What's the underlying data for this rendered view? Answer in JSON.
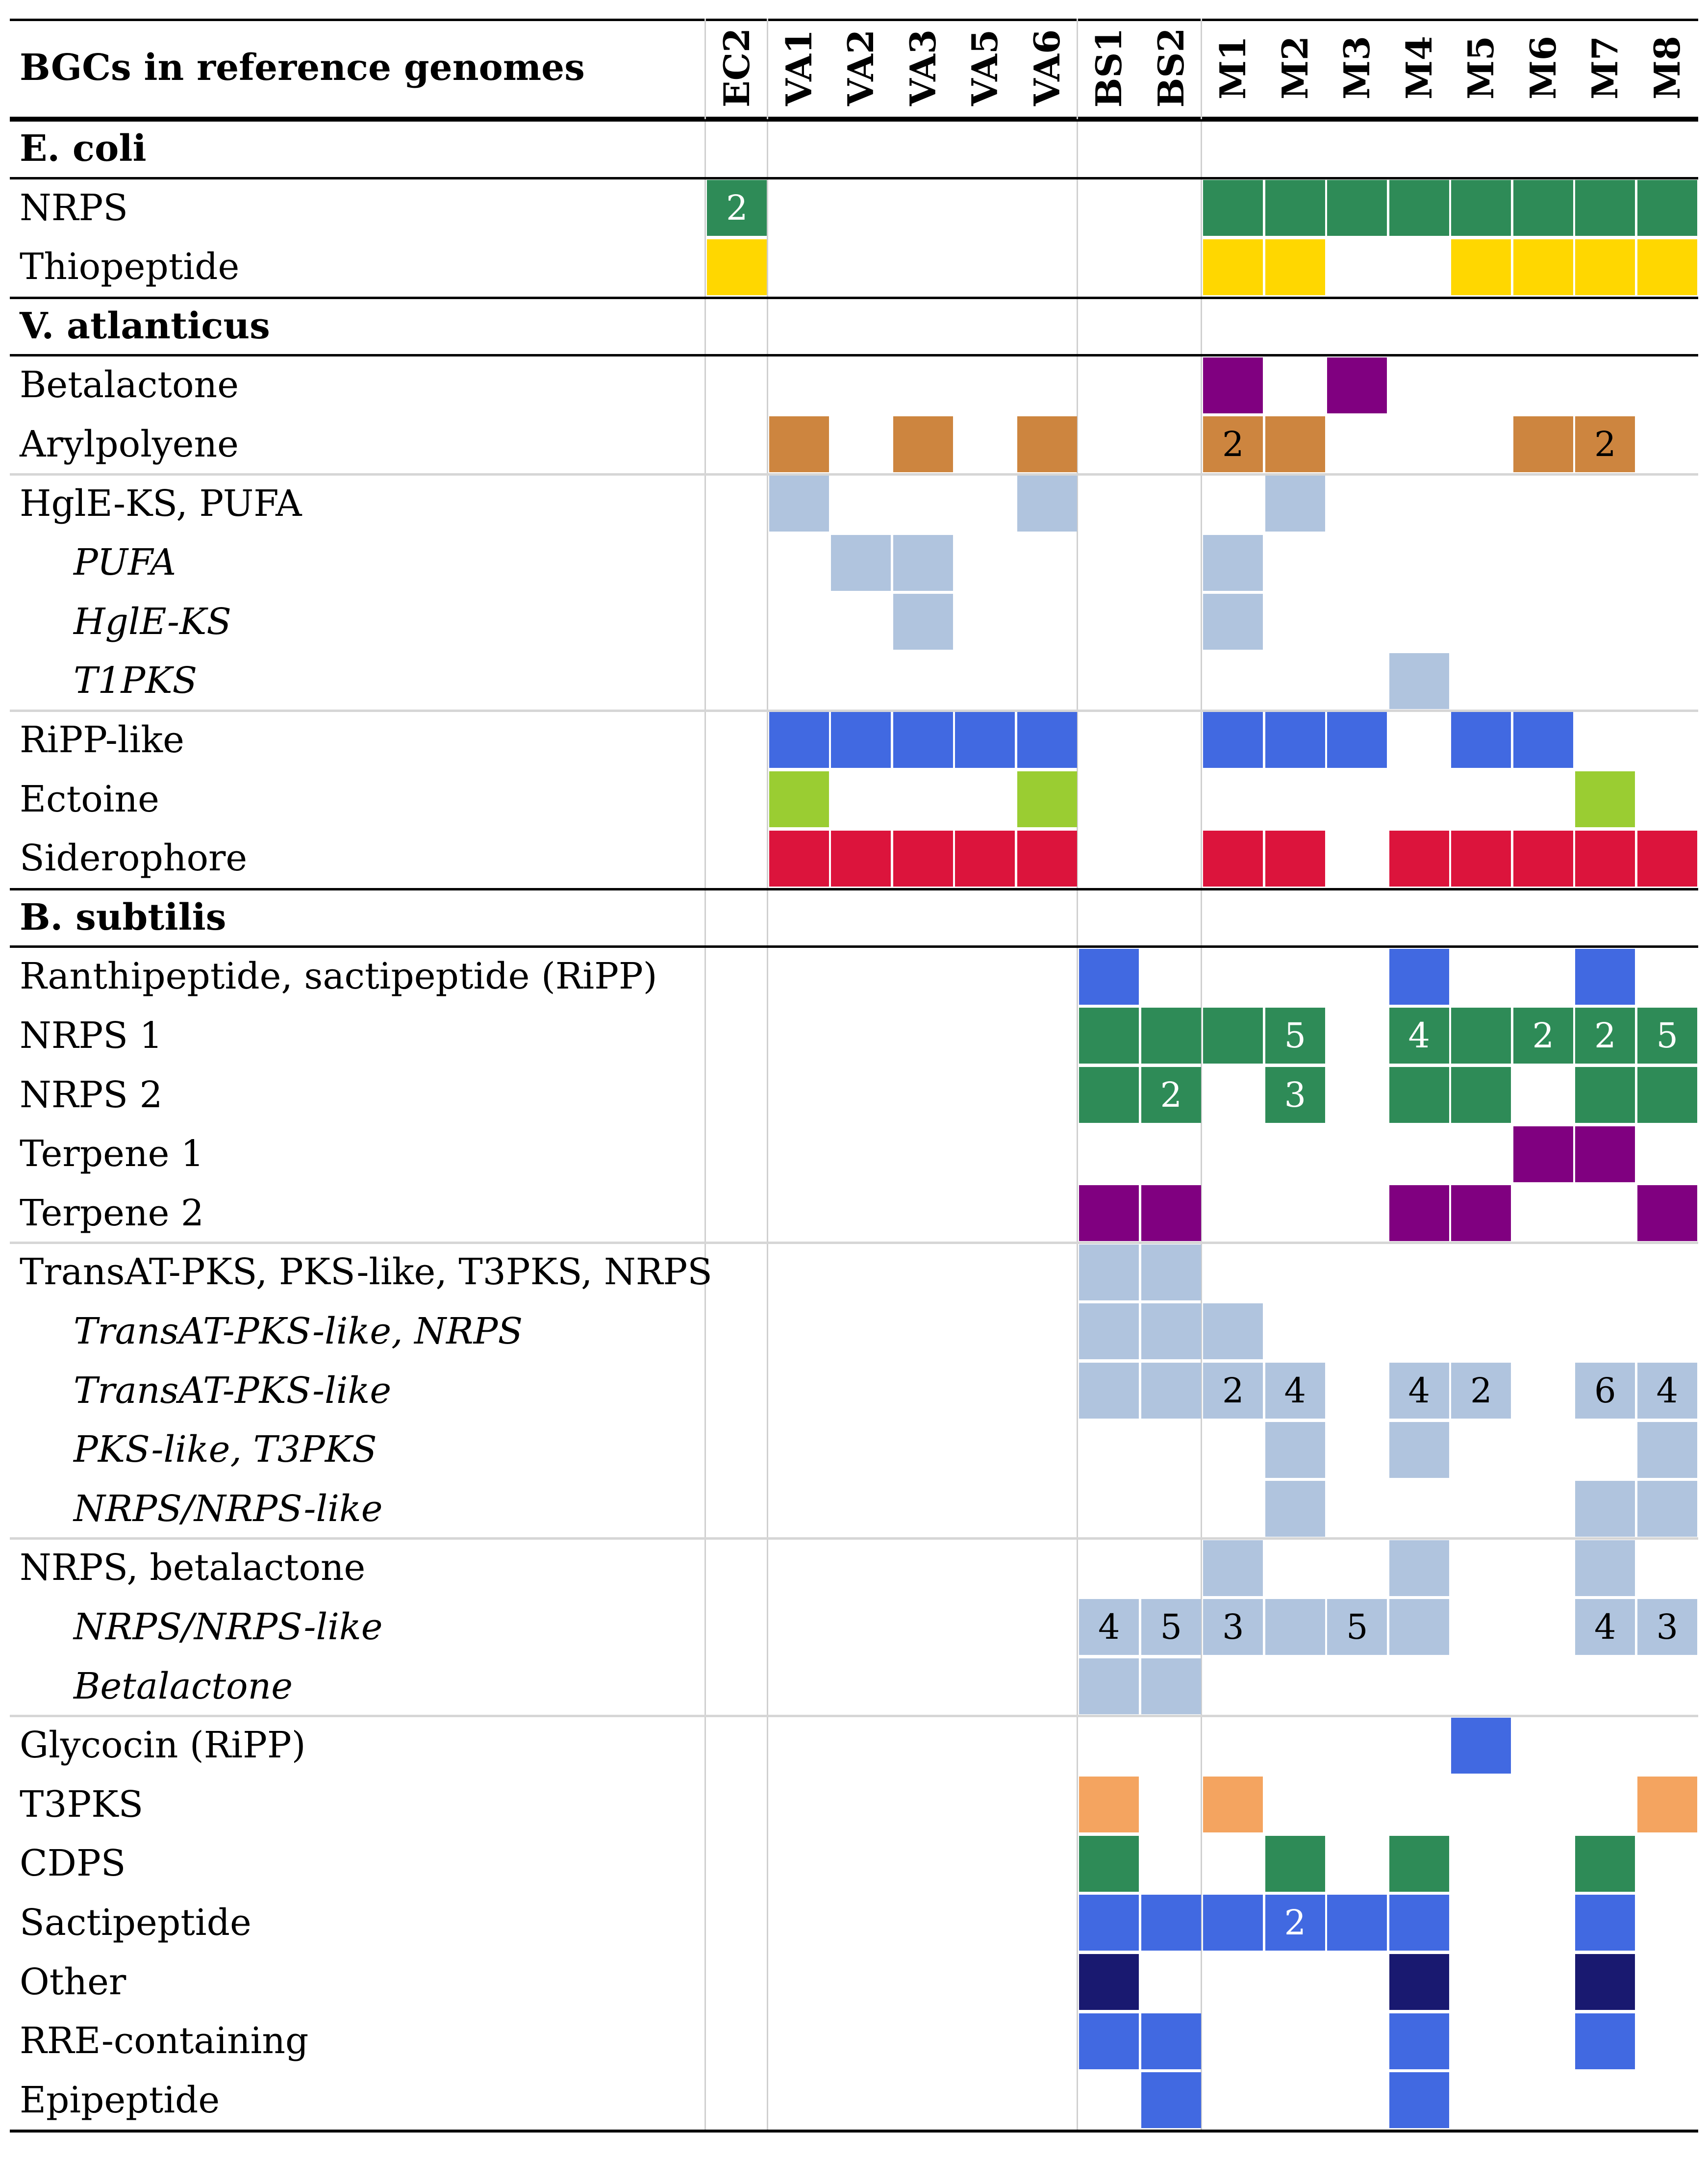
{
  "header": {
    "title": "BGCs in reference genomes"
  },
  "columns": [
    "EC2",
    "VA1",
    "VA2",
    "VA3",
    "VA5",
    "VA6",
    "BS1",
    "BS2",
    "M1",
    "M2",
    "M3",
    "M4",
    "M5",
    "M6",
    "M7",
    "M8"
  ],
  "colors": {
    "green": "#2e8b57",
    "yellow": "#ffd700",
    "purple": "#800080",
    "brown": "#cd853f",
    "lightblue": "#b0c4de",
    "blue": "#4169e1",
    "lime": "#9acd32",
    "red": "#dc143c",
    "orange": "#f4a460",
    "navy": "#191970"
  },
  "rows": [
    {
      "label": "E. coli",
      "type": "section",
      "cells": []
    },
    {
      "label": "NRPS",
      "type": "row",
      "cells": [
        {
          "col": 0,
          "color": "green",
          "text": "2"
        },
        {
          "col": 8,
          "color": "green"
        },
        {
          "col": 9,
          "color": "green"
        },
        {
          "col": 10,
          "color": "green"
        },
        {
          "col": 11,
          "color": "green"
        },
        {
          "col": 12,
          "color": "green"
        },
        {
          "col": 13,
          "color": "green"
        },
        {
          "col": 14,
          "color": "green"
        },
        {
          "col": 15,
          "color": "green"
        }
      ]
    },
    {
      "label": "Thiopeptide",
      "type": "row",
      "cells": [
        {
          "col": 0,
          "color": "yellow"
        },
        {
          "col": 8,
          "color": "yellow"
        },
        {
          "col": 9,
          "color": "yellow"
        },
        {
          "col": 12,
          "color": "yellow"
        },
        {
          "col": 13,
          "color": "yellow"
        },
        {
          "col": 14,
          "color": "yellow"
        },
        {
          "col": 15,
          "color": "yellow"
        }
      ]
    },
    {
      "label": "V. atlanticus",
      "type": "section",
      "cells": []
    },
    {
      "label": "Betalactone",
      "type": "row",
      "cells": [
        {
          "col": 8,
          "color": "purple"
        },
        {
          "col": 10,
          "color": "purple"
        }
      ]
    },
    {
      "label": "Arylpolyene",
      "type": "row",
      "cells": [
        {
          "col": 1,
          "color": "brown"
        },
        {
          "col": 3,
          "color": "brown"
        },
        {
          "col": 5,
          "color": "brown"
        },
        {
          "col": 8,
          "color": "brown",
          "text": "2"
        },
        {
          "col": 9,
          "color": "brown"
        },
        {
          "col": 13,
          "color": "brown"
        },
        {
          "col": 14,
          "color": "brown",
          "text": "2"
        }
      ]
    },
    {
      "label": "HglE-KS, PUFA",
      "type": "row",
      "groupTop": true,
      "cells": [
        {
          "col": 1,
          "color": "lightblue"
        },
        {
          "col": 5,
          "color": "lightblue"
        },
        {
          "col": 9,
          "color": "lightblue"
        }
      ]
    },
    {
      "label": "PUFA",
      "type": "sub",
      "cells": [
        {
          "col": 2,
          "color": "lightblue"
        },
        {
          "col": 3,
          "color": "lightblue"
        },
        {
          "col": 8,
          "color": "lightblue"
        }
      ]
    },
    {
      "label": "HglE-KS",
      "type": "sub",
      "cells": [
        {
          "col": 3,
          "color": "lightblue"
        },
        {
          "col": 8,
          "color": "lightblue"
        }
      ]
    },
    {
      "label": "T1PKS",
      "type": "sub",
      "cells": [
        {
          "col": 11,
          "color": "lightblue"
        }
      ]
    },
    {
      "label": "RiPP-like",
      "type": "row",
      "groupTop": true,
      "cells": [
        {
          "col": 1,
          "color": "blue"
        },
        {
          "col": 2,
          "color": "blue"
        },
        {
          "col": 3,
          "color": "blue"
        },
        {
          "col": 4,
          "color": "blue"
        },
        {
          "col": 5,
          "color": "blue"
        },
        {
          "col": 8,
          "color": "blue"
        },
        {
          "col": 9,
          "color": "blue"
        },
        {
          "col": 10,
          "color": "blue"
        },
        {
          "col": 12,
          "color": "blue"
        },
        {
          "col": 13,
          "color": "blue"
        }
      ]
    },
    {
      "label": "Ectoine",
      "type": "row",
      "cells": [
        {
          "col": 1,
          "color": "lime"
        },
        {
          "col": 5,
          "color": "lime"
        },
        {
          "col": 14,
          "color": "lime"
        }
      ]
    },
    {
      "label": "Siderophore",
      "type": "row",
      "cells": [
        {
          "col": 1,
          "color": "red"
        },
        {
          "col": 2,
          "color": "red"
        },
        {
          "col": 3,
          "color": "red"
        },
        {
          "col": 4,
          "color": "red"
        },
        {
          "col": 5,
          "color": "red"
        },
        {
          "col": 8,
          "color": "red"
        },
        {
          "col": 9,
          "color": "red"
        },
        {
          "col": 11,
          "color": "red"
        },
        {
          "col": 12,
          "color": "red"
        },
        {
          "col": 13,
          "color": "red"
        },
        {
          "col": 14,
          "color": "red"
        },
        {
          "col": 15,
          "color": "red"
        }
      ]
    },
    {
      "label": "B. subtilis",
      "type": "section",
      "cells": []
    },
    {
      "label": "Ranthipeptide, sactipeptide (RiPP)",
      "type": "row",
      "cells": [
        {
          "col": 6,
          "color": "blue"
        },
        {
          "col": 11,
          "color": "blue"
        },
        {
          "col": 14,
          "color": "blue"
        }
      ]
    },
    {
      "label": "NRPS 1",
      "type": "row",
      "cells": [
        {
          "col": 6,
          "color": "green"
        },
        {
          "col": 7,
          "color": "green"
        },
        {
          "col": 8,
          "color": "green"
        },
        {
          "col": 9,
          "color": "green",
          "text": "5"
        },
        {
          "col": 11,
          "color": "green",
          "text": "4"
        },
        {
          "col": 12,
          "color": "green"
        },
        {
          "col": 13,
          "color": "green",
          "text": "2"
        },
        {
          "col": 14,
          "color": "green",
          "text": "2"
        },
        {
          "col": 15,
          "color": "green",
          "text": "5"
        }
      ]
    },
    {
      "label": "NRPS 2",
      "type": "row",
      "cells": [
        {
          "col": 6,
          "color": "green"
        },
        {
          "col": 7,
          "color": "green",
          "text": "2"
        },
        {
          "col": 9,
          "color": "green",
          "text": "3"
        },
        {
          "col": 11,
          "color": "green"
        },
        {
          "col": 12,
          "color": "green"
        },
        {
          "col": 14,
          "color": "green"
        },
        {
          "col": 15,
          "color": "green"
        }
      ]
    },
    {
      "label": "Terpene 1",
      "type": "row",
      "cells": [
        {
          "col": 13,
          "color": "purple"
        },
        {
          "col": 14,
          "color": "purple"
        }
      ]
    },
    {
      "label": "Terpene 2",
      "type": "row",
      "cells": [
        {
          "col": 6,
          "color": "purple"
        },
        {
          "col": 7,
          "color": "purple"
        },
        {
          "col": 11,
          "color": "purple"
        },
        {
          "col": 12,
          "color": "purple"
        },
        {
          "col": 15,
          "color": "purple"
        }
      ]
    },
    {
      "label": "TransAT-PKS, PKS-like, T3PKS, NRPS",
      "type": "row",
      "groupTop": true,
      "cells": [
        {
          "col": 6,
          "color": "lightblue"
        },
        {
          "col": 7,
          "color": "lightblue"
        }
      ]
    },
    {
      "label": "TransAT-PKS-like, NRPS",
      "type": "sub",
      "cells": [
        {
          "col": 6,
          "color": "lightblue"
        },
        {
          "col": 7,
          "color": "lightblue"
        },
        {
          "col": 8,
          "color": "lightblue"
        }
      ]
    },
    {
      "label": "TransAT-PKS-like",
      "type": "sub",
      "cells": [
        {
          "col": 6,
          "color": "lightblue"
        },
        {
          "col": 7,
          "color": "lightblue"
        },
        {
          "col": 8,
          "color": "lightblue",
          "text": "2"
        },
        {
          "col": 9,
          "color": "lightblue",
          "text": "4"
        },
        {
          "col": 11,
          "color": "lightblue",
          "text": "4"
        },
        {
          "col": 12,
          "color": "lightblue",
          "text": "2"
        },
        {
          "col": 14,
          "color": "lightblue",
          "text": "6"
        },
        {
          "col": 15,
          "color": "lightblue",
          "text": "4"
        }
      ]
    },
    {
      "label": "PKS-like, T3PKS",
      "type": "sub",
      "cells": [
        {
          "col": 9,
          "color": "lightblue"
        },
        {
          "col": 11,
          "color": "lightblue"
        },
        {
          "col": 15,
          "color": "lightblue"
        }
      ]
    },
    {
      "label": "NRPS/NRPS-like",
      "type": "sub",
      "cells": [
        {
          "col": 9,
          "color": "lightblue"
        },
        {
          "col": 14,
          "color": "lightblue"
        },
        {
          "col": 15,
          "color": "lightblue"
        }
      ]
    },
    {
      "label": "NRPS, betalactone",
      "type": "row",
      "groupTop": true,
      "cells": [
        {
          "col": 8,
          "color": "lightblue"
        },
        {
          "col": 11,
          "color": "lightblue"
        },
        {
          "col": 14,
          "color": "lightblue"
        }
      ]
    },
    {
      "label": "NRPS/NRPS-like",
      "type": "sub",
      "cells": [
        {
          "col": 6,
          "color": "lightblue",
          "text": "4"
        },
        {
          "col": 7,
          "color": "lightblue",
          "text": "5"
        },
        {
          "col": 8,
          "color": "lightblue",
          "text": "3"
        },
        {
          "col": 9,
          "color": "lightblue"
        },
        {
          "col": 10,
          "color": "lightblue",
          "text": "5"
        },
        {
          "col": 11,
          "color": "lightblue"
        },
        {
          "col": 14,
          "color": "lightblue",
          "text": "4"
        },
        {
          "col": 15,
          "color": "lightblue",
          "text": "3"
        }
      ]
    },
    {
      "label": "Betalactone",
      "type": "sub",
      "cells": [
        {
          "col": 6,
          "color": "lightblue"
        },
        {
          "col": 7,
          "color": "lightblue"
        }
      ]
    },
    {
      "label": "Glycocin (RiPP)",
      "type": "row",
      "groupTop": true,
      "cells": [
        {
          "col": 12,
          "color": "blue"
        }
      ]
    },
    {
      "label": "T3PKS",
      "type": "row",
      "cells": [
        {
          "col": 6,
          "color": "orange"
        },
        {
          "col": 8,
          "color": "orange"
        },
        {
          "col": 15,
          "color": "orange"
        }
      ]
    },
    {
      "label": "CDPS",
      "type": "row",
      "cells": [
        {
          "col": 6,
          "color": "green"
        },
        {
          "col": 9,
          "color": "green"
        },
        {
          "col": 11,
          "color": "green"
        },
        {
          "col": 14,
          "color": "green"
        }
      ]
    },
    {
      "label": "Sactipeptide",
      "type": "row",
      "cells": [
        {
          "col": 6,
          "color": "blue"
        },
        {
          "col": 7,
          "color": "blue"
        },
        {
          "col": 8,
          "color": "blue"
        },
        {
          "col": 9,
          "color": "blue",
          "text": "2"
        },
        {
          "col": 10,
          "color": "blue"
        },
        {
          "col": 11,
          "color": "blue"
        },
        {
          "col": 14,
          "color": "blue"
        }
      ]
    },
    {
      "label": "Other",
      "type": "row",
      "cells": [
        {
          "col": 6,
          "color": "navy"
        },
        {
          "col": 11,
          "color": "navy"
        },
        {
          "col": 14,
          "color": "navy"
        }
      ]
    },
    {
      "label": "RRE-containing",
      "type": "row",
      "cells": [
        {
          "col": 6,
          "color": "blue"
        },
        {
          "col": 7,
          "color": "blue"
        },
        {
          "col": 11,
          "color": "blue"
        },
        {
          "col": 14,
          "color": "blue"
        }
      ]
    },
    {
      "label": "Epipeptide",
      "type": "row",
      "cells": [
        {
          "col": 7,
          "color": "blue"
        },
        {
          "col": 11,
          "color": "blue"
        }
      ]
    }
  ]
}
